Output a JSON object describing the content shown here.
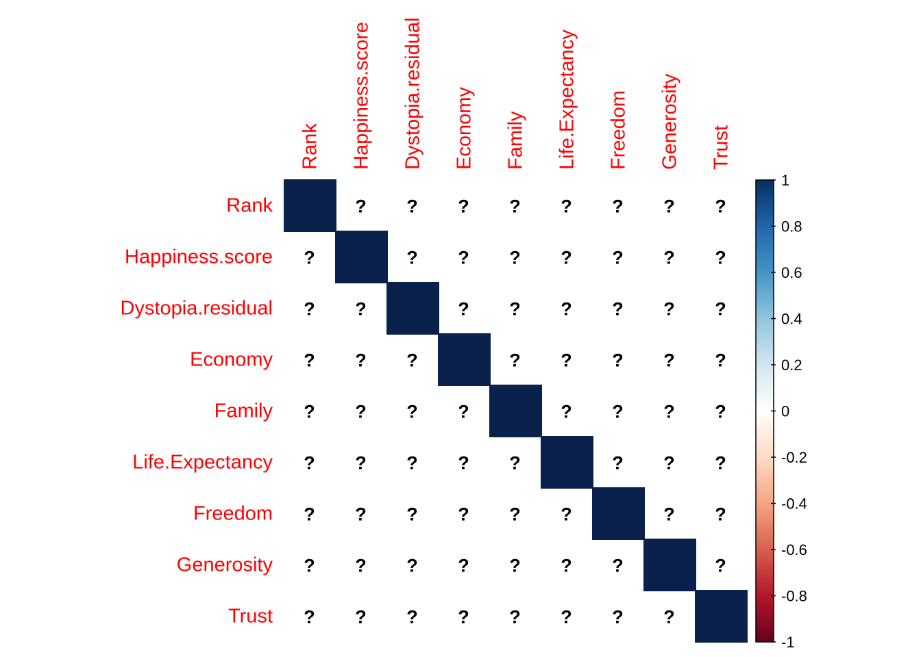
{
  "chart_data": {
    "type": "heatmap",
    "variables": [
      "Rank",
      "Happiness.score",
      "Dystopia.residual",
      "Economy",
      "Family",
      "Life.Expectancy",
      "Freedom",
      "Generosity",
      "Trust"
    ],
    "diagonal_value": 1,
    "off_diagonal_label": "?",
    "colorbar": {
      "range": [
        -1,
        1
      ],
      "ticks": [
        "1",
        "0.8",
        "0.6",
        "0.4",
        "0.2",
        "0",
        "-0.2",
        "-0.4",
        "-0.6",
        "-0.8",
        "-1"
      ],
      "colors": {
        "min": "#67001f",
        "mid": "#ffffff",
        "max": "#053061"
      }
    },
    "label_color": "#ff0000",
    "cell_color_diagonal": "#0a224b"
  }
}
